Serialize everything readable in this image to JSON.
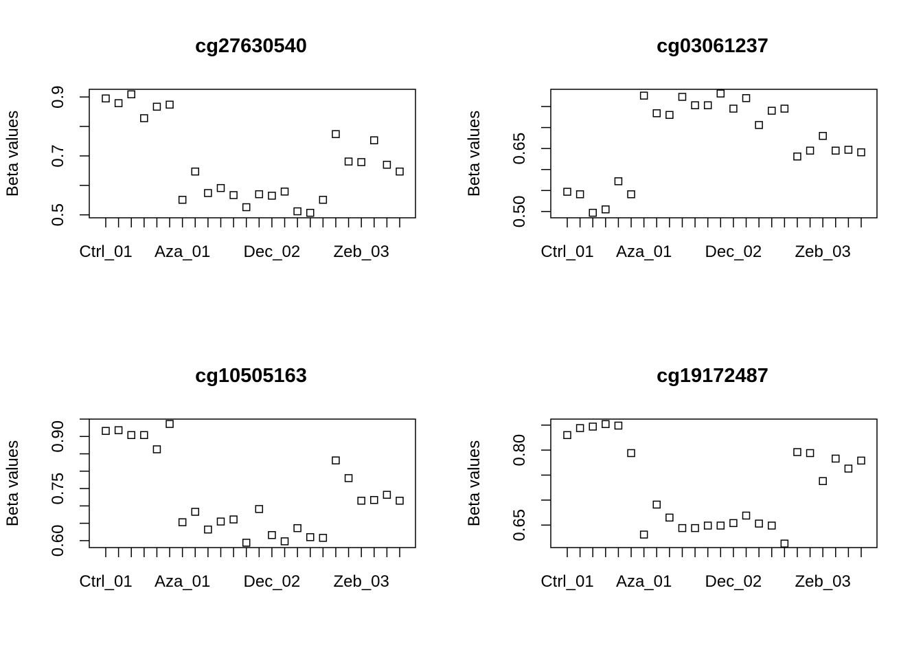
{
  "chart_data": [
    {
      "type": "scatter",
      "title": "cg27630540",
      "ylabel": "Beta values",
      "marker": "square",
      "color": "#000000",
      "categories": [
        "Ctrl_01",
        null,
        null,
        null,
        null,
        null,
        "Aza_01",
        null,
        null,
        null,
        null,
        null,
        null,
        "Dec_02",
        null,
        null,
        null,
        null,
        null,
        null,
        "Zeb_03",
        null,
        null,
        null
      ],
      "values": [
        0.895,
        0.879,
        0.909,
        0.828,
        0.867,
        0.874,
        0.551,
        0.647,
        0.574,
        0.591,
        0.567,
        0.526,
        0.57,
        0.565,
        0.579,
        0.512,
        0.507,
        0.551,
        0.774,
        0.681,
        0.679,
        0.753,
        0.67,
        0.647
      ],
      "ylim": [
        0.49,
        0.926
      ],
      "yticks": [
        0.5,
        {
          "value": 0.6,
          "label": null
        },
        0.7,
        {
          "value": 0.8,
          "label": null
        },
        0.9
      ]
    },
    {
      "type": "scatter",
      "title": "cg03061237",
      "ylabel": "Beta values",
      "marker": "square",
      "color": "#000000",
      "categories": [
        "Ctrl_01",
        null,
        null,
        null,
        null,
        null,
        "Aza_01",
        null,
        null,
        null,
        null,
        null,
        null,
        "Dec_02",
        null,
        null,
        null,
        null,
        null,
        null,
        "Zeb_03",
        null,
        null,
        null
      ],
      "values": [
        0.547,
        0.541,
        0.497,
        0.505,
        0.572,
        0.541,
        0.776,
        0.734,
        0.73,
        0.773,
        0.753,
        0.753,
        0.781,
        0.745,
        0.77,
        0.706,
        0.74,
        0.745,
        0.631,
        0.645,
        0.68,
        0.645,
        0.647,
        0.641
      ],
      "ylim": [
        0.485,
        0.791
      ],
      "yticks": [
        {
          "value": 0.5,
          "label": "0.50"
        },
        {
          "value": 0.55,
          "label": null
        },
        {
          "value": 0.6,
          "label": null
        },
        0.65,
        {
          "value": 0.7,
          "label": null
        },
        {
          "value": 0.75,
          "label": null
        }
      ]
    },
    {
      "type": "scatter",
      "title": "cg10505163",
      "ylabel": "Beta values",
      "marker": "square",
      "color": "#000000",
      "categories": [
        "Ctrl_01",
        null,
        null,
        null,
        null,
        null,
        "Aza_01",
        null,
        null,
        null,
        null,
        null,
        null,
        "Dec_02",
        null,
        null,
        null,
        null,
        null,
        null,
        "Zeb_03",
        null,
        null,
        null
      ],
      "values": [
        0.916,
        0.918,
        0.904,
        0.904,
        0.863,
        0.936,
        0.653,
        0.683,
        0.632,
        0.655,
        0.661,
        0.594,
        0.691,
        0.616,
        0.598,
        0.636,
        0.61,
        0.608,
        0.831,
        0.78,
        0.715,
        0.717,
        0.732,
        0.715
      ],
      "ylim": [
        0.58,
        0.95
      ],
      "yticks": [
        {
          "value": 0.6,
          "label": "0.60"
        },
        {
          "value": 0.65,
          "label": null
        },
        {
          "value": 0.7,
          "label": null
        },
        0.75,
        {
          "value": 0.8,
          "label": null
        },
        {
          "value": 0.85,
          "label": null
        },
        {
          "value": 0.9,
          "label": "0.90"
        },
        {
          "value": 0.95,
          "label": null
        }
      ]
    },
    {
      "type": "scatter",
      "title": "cg19172487",
      "ylabel": "Beta values",
      "marker": "square",
      "color": "#000000",
      "categories": [
        "Ctrl_01",
        null,
        null,
        null,
        null,
        null,
        "Aza_01",
        null,
        null,
        null,
        null,
        null,
        null,
        "Dec_02",
        null,
        null,
        null,
        null,
        null,
        null,
        "Zeb_03",
        null,
        null,
        null
      ],
      "values": [
        0.83,
        0.844,
        0.847,
        0.852,
        0.849,
        0.794,
        0.631,
        0.691,
        0.665,
        0.644,
        0.644,
        0.649,
        0.649,
        0.654,
        0.669,
        0.653,
        0.649,
        0.613,
        0.796,
        0.794,
        0.738,
        0.783,
        0.763,
        0.779
      ],
      "ylim": [
        0.605,
        0.862
      ],
      "yticks": [
        0.65,
        {
          "value": 0.7,
          "label": null
        },
        {
          "value": 0.75,
          "label": null
        },
        {
          "value": 0.8,
          "label": "0.80"
        },
        {
          "value": 0.85,
          "label": null
        }
      ]
    }
  ]
}
